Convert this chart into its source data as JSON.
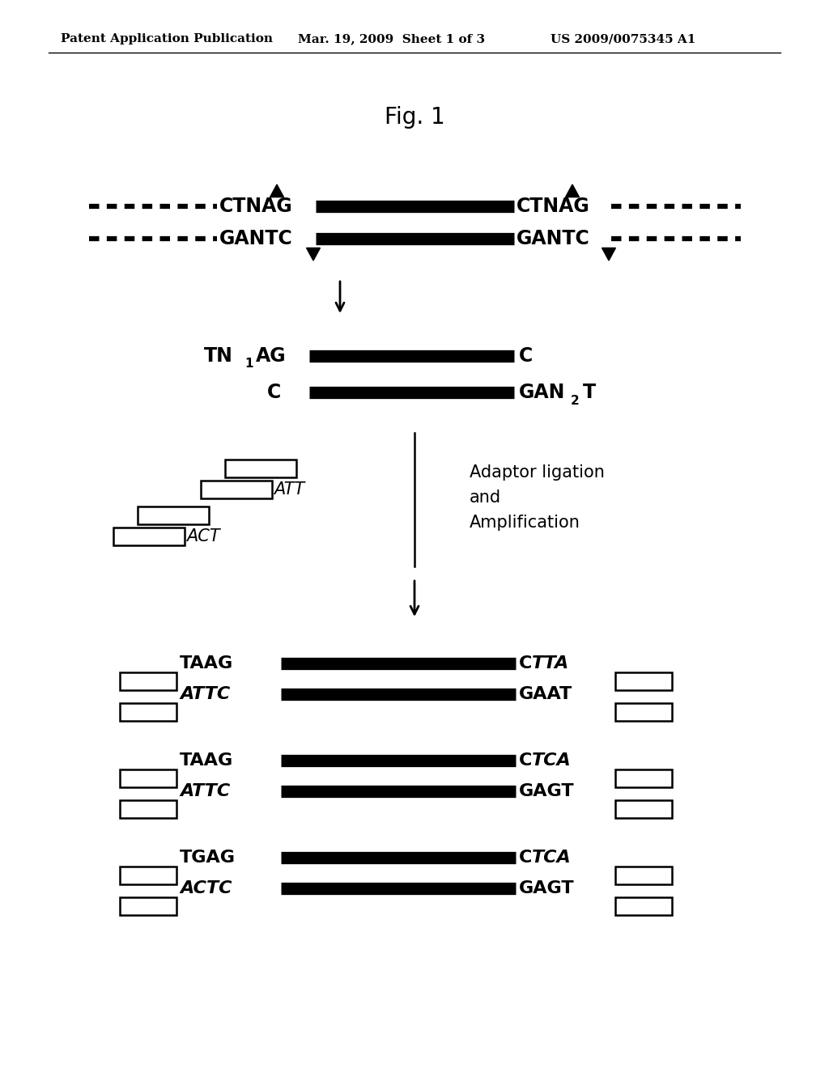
{
  "title": "Fig. 1",
  "header_left": "Patent Application Publication",
  "header_mid": "Mar. 19, 2009  Sheet 1 of 3",
  "header_right": "US 2009/0075345 A1",
  "bg_color": "#ffffff",
  "fig_width": 10.24,
  "fig_height": 13.2,
  "dpi": 100
}
